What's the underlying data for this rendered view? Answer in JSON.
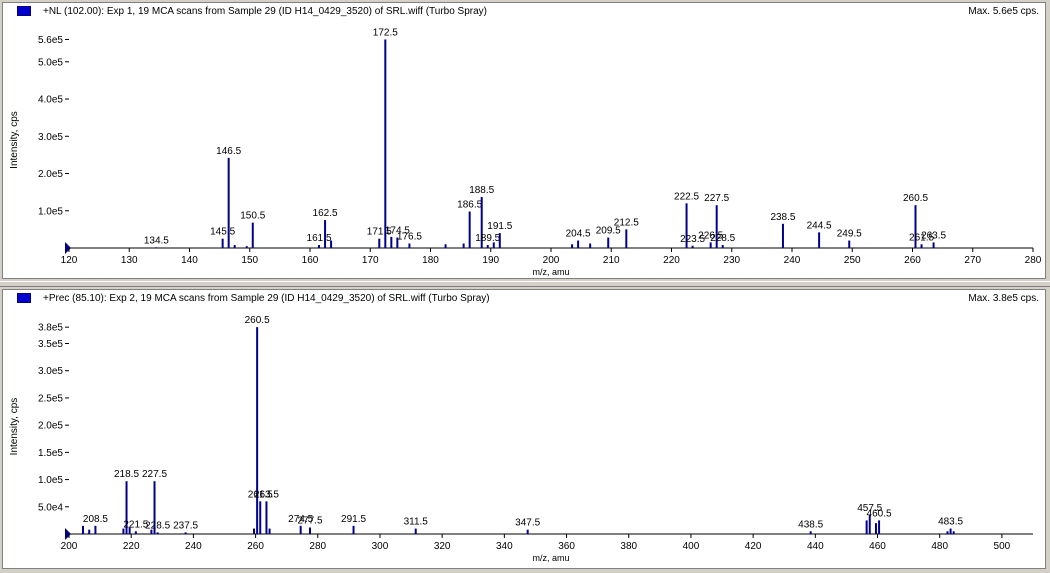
{
  "colors": {
    "peak": "#00008b",
    "axis": "#000000",
    "label": "#000000",
    "icon": "#0000cc"
  },
  "panels": [
    {
      "title": "+NL (102.00): Exp 1, 19 MCA scans from Sample 29 (ID H14_0429_3520) of SRL.wiff (Turbo Spray)",
      "max_label": "Max. 5.6e5 cps.",
      "chart_data": {
        "type": "bar",
        "xlabel": "m/z, amu",
        "ylabel": "Intensity, cps",
        "xlim": [
          120,
          280
        ],
        "ylim": [
          0,
          580000
        ],
        "xticks": [
          120,
          130,
          140,
          150,
          160,
          170,
          180,
          190,
          200,
          210,
          220,
          230,
          240,
          250,
          260,
          270,
          280
        ],
        "yticks": [
          {
            "v": 100000,
            "label": "1.0e5"
          },
          {
            "v": 200000,
            "label": "2.0e5"
          },
          {
            "v": 300000,
            "label": "3.0e5"
          },
          {
            "v": 400000,
            "label": "4.0e5"
          },
          {
            "v": 500000,
            "label": "5.0e5"
          },
          {
            "v": 560000,
            "label": "5.6e5"
          }
        ],
        "peaks": [
          {
            "x": 134.5,
            "y": 2000,
            "label": "134.5"
          },
          {
            "x": 145.5,
            "y": 25000,
            "label": "145.5"
          },
          {
            "x": 146.5,
            "y": 242000,
            "label": "146.5"
          },
          {
            "x": 147.5,
            "y": 8000
          },
          {
            "x": 149.5,
            "y": 5000
          },
          {
            "x": 150.5,
            "y": 68000,
            "label": "150.5"
          },
          {
            "x": 161.5,
            "y": 8000,
            "label": "161.5"
          },
          {
            "x": 162.5,
            "y": 75000,
            "label": "162.5"
          },
          {
            "x": 163.5,
            "y": 20000
          },
          {
            "x": 171.5,
            "y": 25000,
            "label": "171.5"
          },
          {
            "x": 172.5,
            "y": 560000,
            "label": "172.5"
          },
          {
            "x": 173.5,
            "y": 30000
          },
          {
            "x": 174.5,
            "y": 28000,
            "label": "174.5"
          },
          {
            "x": 176.5,
            "y": 12000,
            "label": "176.5"
          },
          {
            "x": 182.5,
            "y": 10000
          },
          {
            "x": 185.5,
            "y": 12000
          },
          {
            "x": 186.5,
            "y": 98000,
            "label": "186.5"
          },
          {
            "x": 188.5,
            "y": 137000,
            "label": "188.5"
          },
          {
            "x": 189.5,
            "y": 8000,
            "label": "189.5"
          },
          {
            "x": 190.5,
            "y": 15000
          },
          {
            "x": 191.5,
            "y": 40000,
            "label": "191.5"
          },
          {
            "x": 203.5,
            "y": 10000
          },
          {
            "x": 204.5,
            "y": 20000,
            "label": "204.5"
          },
          {
            "x": 206.5,
            "y": 12000
          },
          {
            "x": 209.5,
            "y": 28000,
            "label": "209.5"
          },
          {
            "x": 212.5,
            "y": 50000,
            "label": "212.5"
          },
          {
            "x": 222.5,
            "y": 120000,
            "label": "222.5"
          },
          {
            "x": 223.5,
            "y": 6000,
            "label": "223.5"
          },
          {
            "x": 226.5,
            "y": 15000,
            "label": "226.5"
          },
          {
            "x": 227.5,
            "y": 115000,
            "label": "227.5"
          },
          {
            "x": 228.5,
            "y": 8000,
            "label": "228.5"
          },
          {
            "x": 238.5,
            "y": 65000,
            "label": "238.5"
          },
          {
            "x": 244.5,
            "y": 42000,
            "label": "244.5"
          },
          {
            "x": 249.5,
            "y": 20000,
            "label": "249.5"
          },
          {
            "x": 260.5,
            "y": 115000,
            "label": "260.5"
          },
          {
            "x": 261.5,
            "y": 10000,
            "label": "261.5"
          },
          {
            "x": 263.5,
            "y": 15000,
            "label": "263.5"
          }
        ]
      }
    },
    {
      "title": "+Prec (85.10): Exp 2, 19 MCA scans from Sample 29 (ID H14_0429_3520) of SRL.wiff (Turbo Spray)",
      "max_label": "Max. 3.8e5 cps.",
      "chart_data": {
        "type": "bar",
        "xlabel": "m/z, amu",
        "ylabel": "Intensity, cps",
        "xlim": [
          200,
          510
        ],
        "ylim": [
          0,
          395000
        ],
        "xticks": [
          200,
          220,
          240,
          260,
          280,
          300,
          320,
          340,
          360,
          380,
          400,
          420,
          440,
          460,
          480,
          500
        ],
        "yticks": [
          {
            "v": 50000,
            "label": "5.0e4"
          },
          {
            "v": 100000,
            "label": "1.0e5"
          },
          {
            "v": 150000,
            "label": "1.5e5"
          },
          {
            "v": 200000,
            "label": "2.0e5"
          },
          {
            "v": 250000,
            "label": "2.5e5"
          },
          {
            "v": 300000,
            "label": "3.0e5"
          },
          {
            "v": 350000,
            "label": "3.5e5"
          },
          {
            "v": 380000,
            "label": "3.8e5"
          }
        ],
        "peaks": [
          {
            "x": 204.5,
            "y": 15000
          },
          {
            "x": 206.5,
            "y": 8000
          },
          {
            "x": 208.5,
            "y": 15000,
            "label": "208.5"
          },
          {
            "x": 217.5,
            "y": 10000
          },
          {
            "x": 218.5,
            "y": 97000,
            "label": "218.5"
          },
          {
            "x": 219.5,
            "y": 12000
          },
          {
            "x": 221.5,
            "y": 5000,
            "label": "221.5"
          },
          {
            "x": 226.5,
            "y": 8000
          },
          {
            "x": 227.5,
            "y": 97000,
            "label": "227.5"
          },
          {
            "x": 228.5,
            "y": 3000,
            "label": "228.5"
          },
          {
            "x": 237.5,
            "y": 3000,
            "label": "237.5"
          },
          {
            "x": 259.5,
            "y": 10000
          },
          {
            "x": 260.5,
            "y": 380000,
            "label": "260.5"
          },
          {
            "x": 261.5,
            "y": 60000,
            "label": "261.5"
          },
          {
            "x": 263.5,
            "y": 60000,
            "label": "263.5"
          },
          {
            "x": 264.5,
            "y": 10000
          },
          {
            "x": 274.5,
            "y": 15000,
            "label": "274.5"
          },
          {
            "x": 277.5,
            "y": 12000,
            "label": "277.5"
          },
          {
            "x": 291.5,
            "y": 15000,
            "label": "291.5"
          },
          {
            "x": 311.5,
            "y": 10000,
            "label": "311.5"
          },
          {
            "x": 347.5,
            "y": 8000,
            "label": "347.5"
          },
          {
            "x": 438.5,
            "y": 5000,
            "label": "438.5"
          },
          {
            "x": 456.5,
            "y": 25000
          },
          {
            "x": 457.5,
            "y": 35000,
            "label": "457.5"
          },
          {
            "x": 459.5,
            "y": 20000
          },
          {
            "x": 460.5,
            "y": 25000,
            "label": "460.5"
          },
          {
            "x": 482.5,
            "y": 5000
          },
          {
            "x": 483.5,
            "y": 10000,
            "label": "483.5"
          },
          {
            "x": 484.5,
            "y": 5000
          }
        ]
      }
    }
  ]
}
